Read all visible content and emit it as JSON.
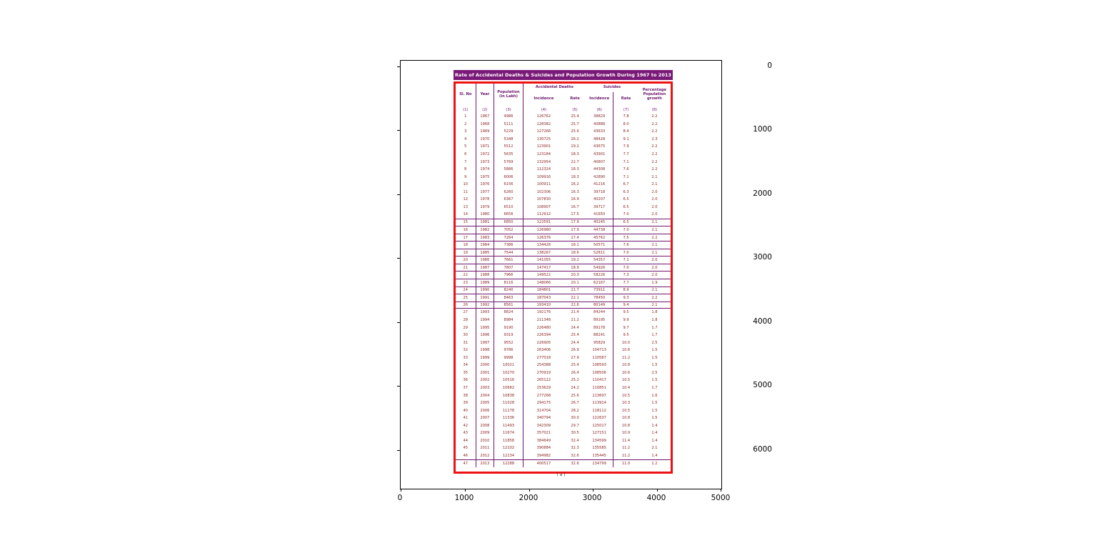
{
  "figure": {
    "x_ticks": [
      "0",
      "1000",
      "2000",
      "3000",
      "4000",
      "5000"
    ],
    "y_ticks": [
      "0",
      "1000",
      "2000",
      "3000",
      "4000",
      "5000",
      "6000"
    ]
  },
  "table": {
    "title": "Rate of Accidental Deaths & Suicides and Population Growth During 1967 to 2013",
    "caption": "( a )",
    "col_headers": {
      "sl_no": "Sl. No",
      "year": "Year",
      "population": "Population (in Lakh)",
      "accidental_deaths": "Accidental Deaths",
      "suicides": "Suicides",
      "incidence_ad": "Incidence",
      "rate_ad": "Rate",
      "incidence_su": "Incidence",
      "rate_su": "Rate",
      "growth": "Percentage Population growth"
    },
    "col_numbers": [
      "(1)",
      "(2)",
      "(3)",
      "(4)",
      "(5)",
      "(6)",
      "(7)",
      "(8)"
    ]
  },
  "colors": {
    "title_bar": "#7a1a78",
    "outer_border": "#ee1111",
    "grid_lines": "#6b156b",
    "header_text": "#6b156b",
    "data_text": "#8b2323"
  },
  "chart_data": {
    "type": "table",
    "title": "Rate of Accidental Deaths & Suicides and Population Growth During 1967 to 2013",
    "columns": [
      "Sl. No",
      "Year",
      "Population (in Lakh)",
      "Accidental Deaths Incidence",
      "Accidental Deaths Rate",
      "Suicides Incidence",
      "Suicides Rate",
      "Percentage Population growth"
    ],
    "x_axis_range": [
      0,
      5000
    ],
    "y_axis_range": [
      0,
      6600
    ],
    "rows": [
      [
        1,
        1967,
        4986,
        126762,
        "25.4",
        38829,
        "7.8",
        "2.2"
      ],
      [
        2,
        1968,
        5111,
        128382,
        "25.7",
        40888,
        "8.0",
        "2.2"
      ],
      [
        3,
        1969,
        5229,
        127266,
        "25.0",
        43633,
        "8.4",
        "2.2"
      ],
      [
        4,
        1970,
        5348,
        130725,
        "26.2",
        48428,
        "9.1",
        "2.3"
      ],
      [
        5,
        1971,
        5512,
        123901,
        "19.2",
        43675,
        "7.9",
        "2.2"
      ],
      [
        6,
        1972,
        5635,
        123184,
        "18.3",
        43901,
        "7.7",
        "2.2"
      ],
      [
        7,
        1973,
        5769,
        132954,
        "22.7",
        40807,
        "7.1",
        "2.2"
      ],
      [
        8,
        1974,
        5886,
        112324,
        "18.3",
        44308,
        "7.6",
        "2.2"
      ],
      [
        9,
        1975,
        6006,
        109916,
        "18.3",
        42890,
        "7.1",
        "2.1"
      ],
      [
        10,
        1976,
        6156,
        100911,
        "16.2",
        41216,
        "6.7",
        "2.1"
      ],
      [
        11,
        1977,
        6260,
        102306,
        "16.3",
        39718,
        "6.3",
        "2.0"
      ],
      [
        12,
        1978,
        6367,
        107830,
        "16.9",
        40207,
        "6.5",
        "2.0"
      ],
      [
        13,
        1979,
        6510,
        108907,
        "16.7",
        39717,
        "6.5",
        "2.0"
      ],
      [
        14,
        1980,
        6656,
        112912,
        "17.5",
        41650,
        "7.0",
        "2.0"
      ],
      [
        15,
        1981,
        6850,
        122591,
        "17.9",
        40245,
        "6.5",
        "2.1"
      ],
      [
        16,
        1982,
        7052,
        126980,
        "17.9",
        44738,
        "7.0",
        "2.1"
      ],
      [
        17,
        1983,
        7264,
        126376,
        "17.4",
        45762,
        "7.5",
        "2.2"
      ],
      [
        18,
        1984,
        7386,
        134426,
        "18.1",
        50571,
        "7.6",
        "2.1"
      ],
      [
        19,
        1985,
        7544,
        138267,
        "18.6",
        52811,
        "7.0",
        "2.1"
      ],
      [
        20,
        1986,
        7661,
        141055,
        "19.2",
        54357,
        "7.1",
        "2.0"
      ],
      [
        21,
        1987,
        7807,
        147417,
        "18.9",
        54926,
        "7.0",
        "2.0"
      ],
      [
        22,
        1988,
        7966,
        149522,
        "20.3",
        58226,
        "7.3",
        "2.0"
      ],
      [
        23,
        1989,
        8116,
        148066,
        "20.1",
        62167,
        "7.7",
        "1.9"
      ],
      [
        24,
        1990,
        8240,
        184801,
        "21.7",
        73911,
        "8.9",
        "2.1"
      ],
      [
        25,
        1991,
        8463,
        187043,
        "22.1",
        78450,
        "9.3",
        "2.2"
      ],
      [
        26,
        1992,
        8561,
        193410,
        "22.6",
        80149,
        "9.4",
        "2.1"
      ],
      [
        27,
        1993,
        8824,
        192176,
        "21.4",
        84244,
        "9.5",
        "1.8"
      ],
      [
        28,
        1994,
        8984,
        211348,
        "21.2",
        89195,
        "9.9",
        "1.8"
      ],
      [
        29,
        1995,
        9190,
        226480,
        "24.4",
        89178,
        "9.7",
        "1.7"
      ],
      [
        30,
        1996,
        9319,
        226394,
        "25.4",
        88241,
        "9.5",
        "1.7"
      ],
      [
        31,
        1997,
        9552,
        226905,
        "24.4",
        95829,
        "10.0",
        "2.5"
      ],
      [
        32,
        1998,
        9786,
        263406,
        "26.9",
        104713,
        "10.8",
        "1.5"
      ],
      [
        33,
        1999,
        9998,
        277018,
        "27.9",
        110587,
        "11.2",
        "1.5"
      ],
      [
        34,
        2000,
        10021,
        254388,
        "25.4",
        108593,
        "10.8",
        "1.5"
      ],
      [
        35,
        2001,
        10270,
        270919,
        "26.4",
        108506,
        "10.6",
        "2.5"
      ],
      [
        36,
        2002,
        10516,
        265122,
        "25.2",
        110417,
        "10.5",
        "1.5"
      ],
      [
        37,
        2003,
        10682,
        253629,
        "24.2",
        110851,
        "10.4",
        "1.7"
      ],
      [
        38,
        2004,
        10838,
        277268,
        "25.6",
        113697,
        "10.5",
        "1.6"
      ],
      [
        39,
        2005,
        11028,
        294175,
        "26.7",
        113914,
        "10.3",
        "1.5"
      ],
      [
        40,
        2006,
        11178,
        314704,
        "28.2",
        118112,
        "10.5",
        "1.5"
      ],
      [
        41,
        2007,
        11336,
        340794,
        "30.0",
        122637,
        "10.8",
        "1.5"
      ],
      [
        42,
        2008,
        11493,
        342309,
        "29.7",
        125017,
        "10.8",
        "1.4"
      ],
      [
        43,
        2009,
        11674,
        357021,
        "30.5",
        127151,
        "10.9",
        "1.4"
      ],
      [
        44,
        2010,
        11858,
        384649,
        "32.4",
        134599,
        "11.4",
        "1.4"
      ],
      [
        45,
        2011,
        12102,
        390884,
        "32.3",
        135585,
        "11.2",
        "2.1"
      ],
      [
        46,
        2012,
        12134,
        394982,
        "32.6",
        135445,
        "11.2",
        "1.4"
      ],
      [
        47,
        2013,
        12288,
        400517,
        "32.6",
        134799,
        "11.0",
        "1.2"
      ]
    ]
  }
}
